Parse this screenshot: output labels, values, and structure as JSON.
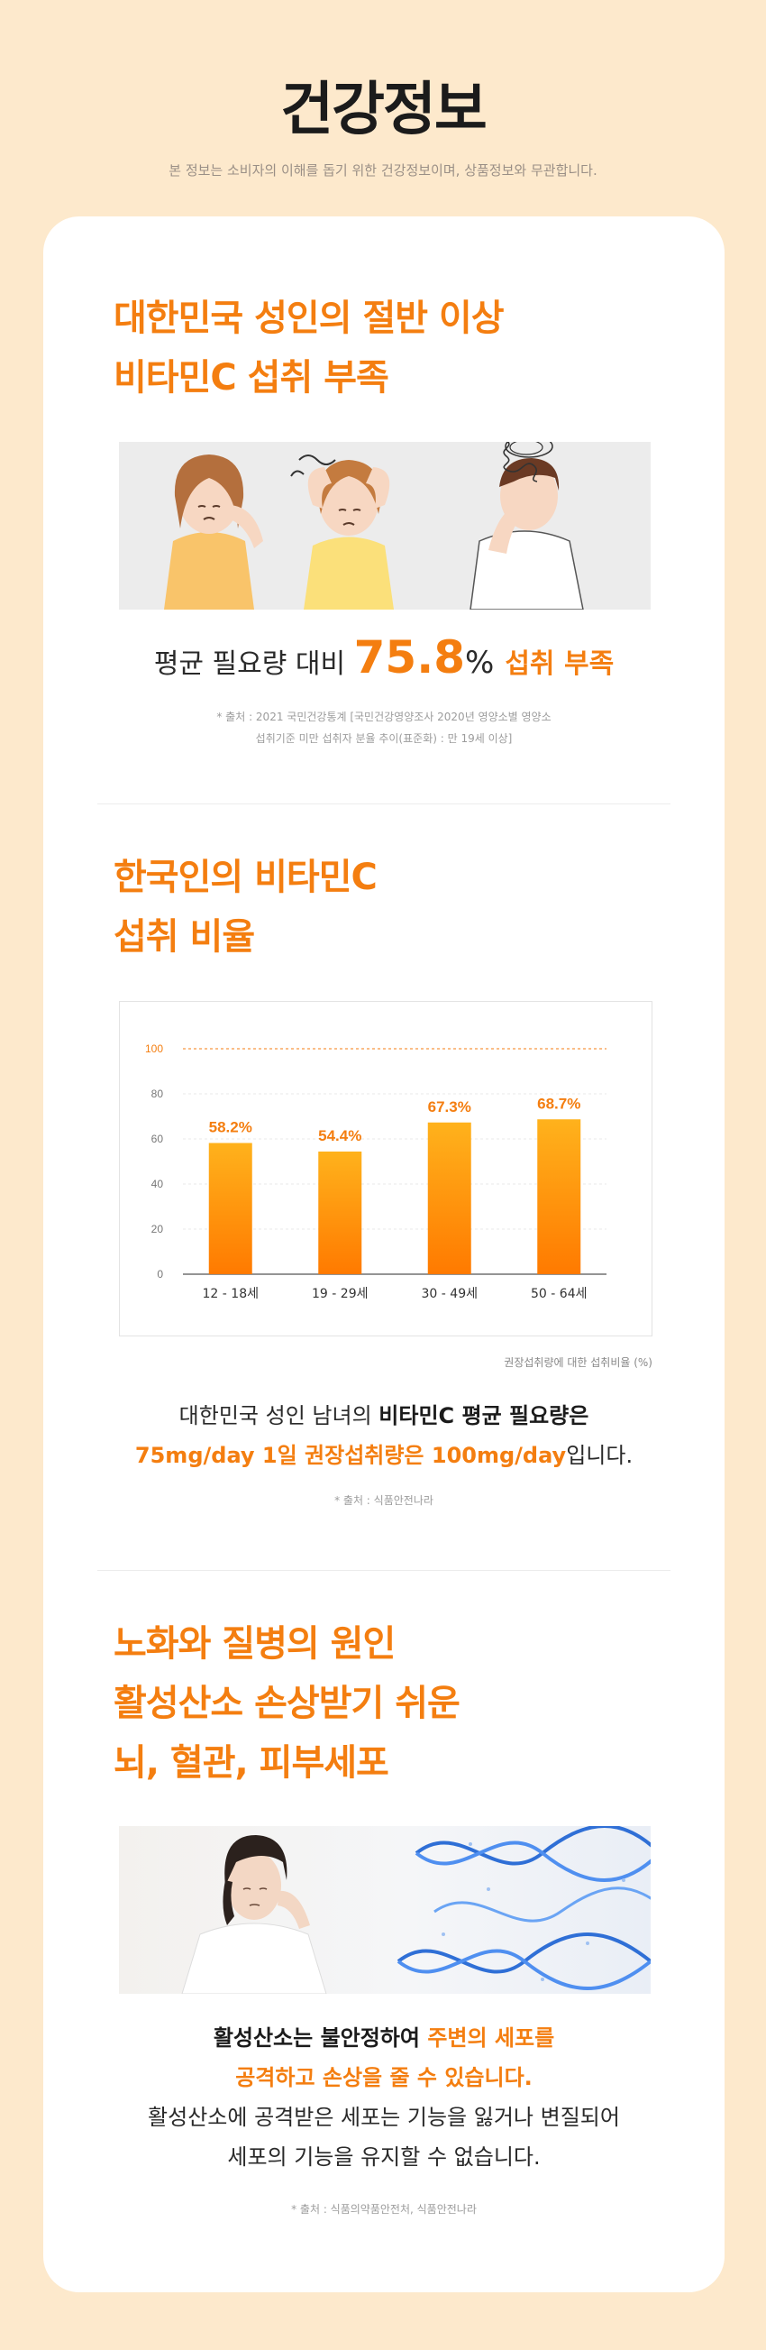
{
  "header": {
    "title": "건강정보",
    "subtitle": "본 정보는 소비자의 이해를 돕기 위한 건강정보이며, 상품정보와 무관합니다."
  },
  "section1": {
    "title_lines": [
      "대한민국 성인의 절반 이상",
      "비타민C 섭취 부족"
    ],
    "stat_prefix": "평균 필요량 대비",
    "stat_value": "75.8",
    "stat_unit": "%",
    "stat_suffix": "섭취 부족",
    "source_lines": [
      "* 출처 : 2021 국민건강통계 [국민건강영양조사 2020년 영양소별 영양소",
      "섭취기준 미만 섭취자 분율 추이(표준화) : 만 19세 이상]"
    ]
  },
  "section2": {
    "title_lines": [
      "한국인의 비타민C",
      "섭취 비율"
    ],
    "chart_note": "권장섭취량에 대한 섭취비율 (%)",
    "para_line1_plain": "대한민국 성인 남녀의 ",
    "para_line1_bold": "비타민C 평균 필요량은",
    "para_line2_orange": "75mg/day 1일 권장섭취량은 100mg/day",
    "para_line2_plain": "입니다.",
    "source": "* 출처 : 식품안전나라"
  },
  "chart_data": {
    "type": "bar",
    "categories": [
      "12 - 18세",
      "19 - 29세",
      "30 - 49세",
      "50 - 64세"
    ],
    "values": [
      58.2,
      54.4,
      67.3,
      68.7
    ],
    "value_labels": [
      "58.2%",
      "54.4%",
      "67.3%",
      "68.7%"
    ],
    "ylim": [
      0,
      100
    ],
    "yticks": [
      0,
      20,
      40,
      60,
      80,
      100
    ],
    "reference_line": 100,
    "grid": true,
    "colors": {
      "bar_top": "#ffb21c",
      "bar_bottom": "#ff7a00",
      "label": "#f47e10",
      "reference": "#f47e10"
    }
  },
  "section3": {
    "title_lines": [
      "노화와 질병의 원인",
      "활성산소 손상받기 쉬운",
      "뇌, 혈관, 피부세포"
    ],
    "para_l1_bold": "활성산소는 불안정하여 ",
    "para_l1_orange": "주변의 세포를",
    "para_l2_orange": "공격하고 손상을 줄 수 있습니다.",
    "para_l3": "활성산소에 공격받은 세포는 기능을 잃거나 변질되어",
    "para_l4": "세포의 기능을 유지할 수 없습니다.",
    "source": "* 출처 : 식품의약품안전처, 식품안전나라"
  },
  "colors": {
    "background": "#fde9cc",
    "accent": "#f47e10",
    "card": "#ffffff"
  },
  "icons": [
    "stressed-people-illustration",
    "woman-headache-photo",
    "dna-helix-graphic"
  ]
}
